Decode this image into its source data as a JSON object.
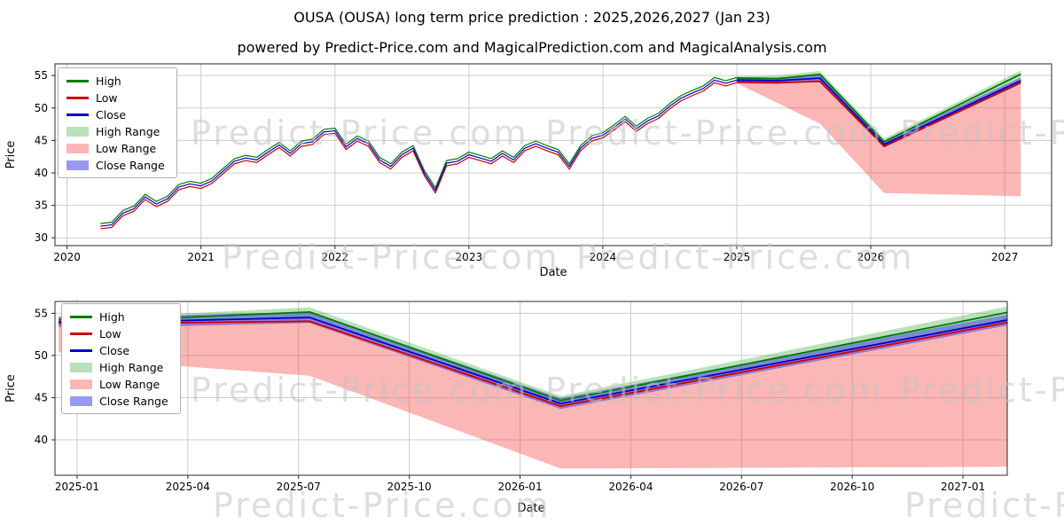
{
  "page": {
    "title": "OUSA (OUSA) long term price prediction : 2025,2026,2027 (Jan 23)",
    "subtitle": "powered by Predict-Price.com and MagicalPrediction.com and MagicalAnalysis.com",
    "watermark": "Predict-Price.com"
  },
  "colors": {
    "high_line": "#007a00",
    "low_line": "#cc0000",
    "close_line": "#0000cc",
    "high_fill": "rgba(60,170,60,0.35)",
    "low_fill": "rgba(245,80,80,0.42)",
    "close_fill": "rgba(70,70,225,0.55)",
    "grid": "#cccccc",
    "spine": "#2a2a2a",
    "tick_text": "#000000"
  },
  "chart_data": [
    {
      "type": "line",
      "name": "history-and-forecast",
      "xlabel": "Date",
      "ylabel": "Price",
      "xlim": [
        2019.91,
        2027.35
      ],
      "ylim": [
        28.8,
        56.8
      ],
      "xticks": [
        2020,
        2021,
        2022,
        2023,
        2024,
        2025,
        2026,
        2027
      ],
      "xtick_labels": [
        "2020",
        "2021",
        "2022",
        "2023",
        "2024",
        "2025",
        "2026",
        "2027"
      ],
      "yticks": [
        30,
        35,
        40,
        45,
        50,
        55
      ],
      "ytick_labels": [
        "30",
        "35",
        "40",
        "45",
        "50",
        "55"
      ],
      "legend": [
        {
          "label": "High",
          "swatch": "line",
          "color_key": "high_line"
        },
        {
          "label": "Low",
          "swatch": "line",
          "color_key": "low_line"
        },
        {
          "label": "Close",
          "swatch": "line",
          "color_key": "close_line"
        },
        {
          "label": "High Range",
          "swatch": "patch",
          "color_key": "high_fill"
        },
        {
          "label": "Low Range",
          "swatch": "patch",
          "color_key": "low_fill"
        },
        {
          "label": "Close Range",
          "swatch": "patch",
          "color_key": "close_fill"
        }
      ],
      "history": {
        "x_start": 2020.25,
        "x_step": 0.083333,
        "high": [
          32.2,
          32.4,
          34.2,
          34.9,
          36.7,
          35.6,
          36.4,
          38.2,
          38.7,
          38.4,
          39.2,
          40.7,
          42.2,
          42.7,
          42.4,
          43.6,
          44.7,
          43.4,
          44.9,
          45.2,
          46.7,
          46.9,
          44.4,
          45.7,
          44.9,
          42.4,
          41.4,
          43.2,
          44.2,
          40.4,
          37.7,
          41.9,
          42.2,
          43.2,
          42.7,
          42.2,
          43.4,
          42.4,
          44.2,
          44.9,
          44.2,
          43.6,
          41.4,
          44.2,
          45.7,
          46.2,
          47.4,
          48.7,
          47.2,
          48.4,
          49.2,
          50.7,
          51.9,
          52.7,
          53.4,
          54.7,
          54.2,
          54.7
        ],
        "low": [
          31.4,
          31.6,
          33.4,
          34.1,
          35.9,
          34.8,
          35.6,
          37.4,
          37.9,
          37.6,
          38.4,
          39.9,
          41.4,
          41.9,
          41.6,
          42.8,
          43.9,
          42.6,
          44.1,
          44.4,
          45.9,
          46.1,
          43.6,
          44.9,
          44.1,
          41.6,
          40.6,
          42.4,
          43.4,
          39.6,
          36.9,
          41.1,
          41.4,
          42.4,
          41.9,
          41.4,
          42.6,
          41.6,
          43.4,
          44.1,
          43.4,
          42.8,
          40.6,
          43.4,
          44.9,
          45.4,
          46.6,
          47.9,
          46.4,
          47.6,
          48.4,
          49.9,
          51.1,
          51.9,
          52.6,
          53.9,
          53.4,
          53.9
        ],
        "close": [
          31.8,
          32.0,
          33.8,
          34.5,
          36.3,
          35.2,
          36.0,
          37.8,
          38.3,
          38.0,
          38.8,
          40.3,
          41.8,
          42.3,
          42.0,
          43.2,
          44.3,
          43.0,
          44.5,
          44.8,
          46.3,
          46.5,
          44.0,
          45.3,
          44.5,
          42.0,
          41.0,
          42.8,
          43.8,
          40.0,
          37.3,
          41.5,
          41.8,
          42.8,
          42.3,
          41.8,
          43.0,
          42.0,
          43.8,
          44.5,
          43.8,
          43.2,
          41.0,
          43.8,
          45.3,
          45.8,
          47.0,
          48.3,
          46.8,
          48.0,
          48.8,
          50.3,
          51.5,
          52.3,
          53.0,
          54.3,
          53.8,
          54.3
        ]
      },
      "forecast": {
        "x": [
          2025.0,
          2025.3,
          2025.62,
          2026.1,
          2027.12
        ],
        "high": [
          54.6,
          54.5,
          55.2,
          44.8,
          55.2
        ],
        "low": [
          54.0,
          53.9,
          54.1,
          44.1,
          53.9
        ],
        "close": [
          54.3,
          54.2,
          54.6,
          44.4,
          54.2
        ],
        "band_high_top": [
          54.8,
          55.0,
          55.7,
          45.3,
          55.8
        ],
        "band_close_top": [
          54.8,
          54.7,
          55.1,
          44.9,
          54.7
        ],
        "band_close_bottom": [
          53.8,
          53.7,
          54.1,
          43.9,
          53.7
        ],
        "band_low_bottom": [
          53.8,
          50.8,
          47.6,
          36.9,
          36.4
        ]
      }
    },
    {
      "type": "line",
      "name": "forecast-detail",
      "xlabel": "Date",
      "ylabel": "Price",
      "xlim": [
        -0.6,
        25.2
      ],
      "ylim": [
        35.8,
        56.4
      ],
      "xticks": [
        0,
        3,
        6,
        9,
        12,
        15,
        18,
        21,
        24
      ],
      "xtick_labels": [
        "2025-01",
        "2025-04",
        "2025-07",
        "2025-10",
        "2026-01",
        "2026-04",
        "2026-07",
        "2026-10",
        "2027-01"
      ],
      "yticks": [
        40,
        45,
        50,
        55
      ],
      "ytick_labels": [
        "40",
        "45",
        "50",
        "55"
      ],
      "legend": [
        {
          "label": "High",
          "swatch": "line",
          "color_key": "high_line"
        },
        {
          "label": "Low",
          "swatch": "line",
          "color_key": "low_line"
        },
        {
          "label": "Close",
          "swatch": "line",
          "color_key": "close_line"
        },
        {
          "label": "High Range",
          "swatch": "patch",
          "color_key": "high_fill"
        },
        {
          "label": "Low Range",
          "swatch": "patch",
          "color_key": "low_fill"
        },
        {
          "label": "Close Range",
          "swatch": "patch",
          "color_key": "close_fill"
        }
      ],
      "forecast": {
        "x": [
          -0.5,
          2.0,
          6.3,
          13.1,
          25.2
        ],
        "high": [
          54.25,
          54.35,
          55.15,
          44.65,
          55.1
        ],
        "low": [
          53.8,
          53.85,
          54.05,
          44.0,
          53.9
        ],
        "close": [
          54.0,
          54.05,
          54.5,
          44.3,
          54.2
        ],
        "band_high_top": [
          54.5,
          54.8,
          55.7,
          45.2,
          55.8
        ],
        "band_close_top": [
          54.65,
          54.7,
          55.15,
          44.95,
          54.85
        ],
        "band_close_bottom": [
          53.35,
          53.4,
          53.85,
          43.65,
          53.55
        ],
        "band_low_bottom": [
          50.4,
          49.0,
          47.6,
          36.6,
          36.8
        ]
      }
    }
  ]
}
